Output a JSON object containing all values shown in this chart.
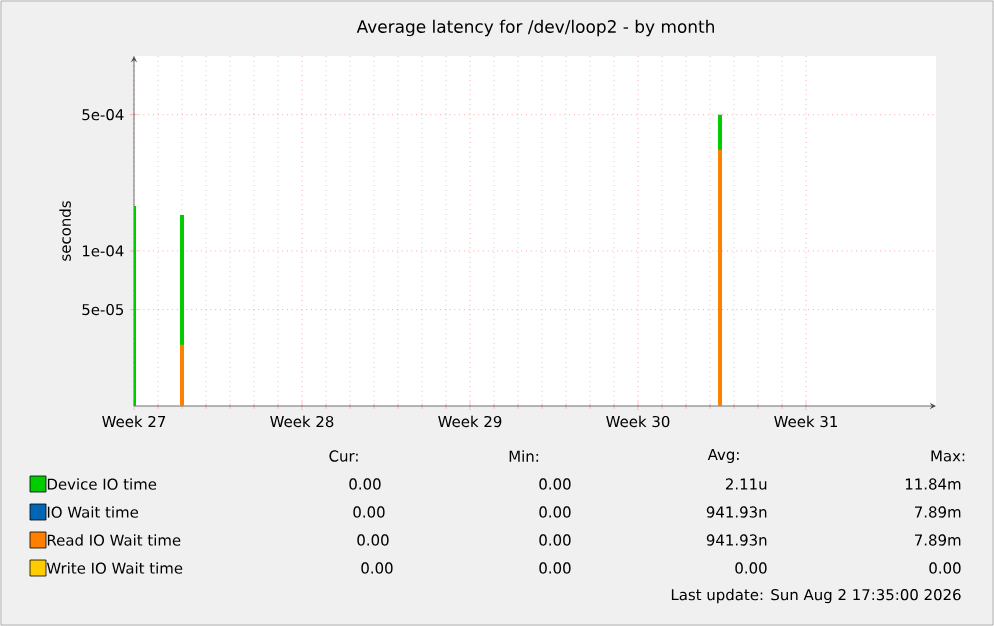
{
  "chart_data": {
    "type": "bar",
    "title": "Average latency for /dev/loop2 - by month",
    "ylabel": "seconds",
    "log": "y",
    "grid": true,
    "legend": "bottom",
    "xlim": [
      "2026-06-29",
      "2026-08-01T10:00"
    ],
    "xticks": [
      {
        "value": "2026-06-29",
        "label": "Week 27"
      },
      {
        "value": "2026-07-06",
        "label": "Week 28"
      },
      {
        "value": "2026-07-13",
        "label": "Week 29"
      },
      {
        "value": "2026-07-20",
        "label": "Week 30"
      },
      {
        "value": "2026-07-27",
        "label": "Week 31"
      }
    ],
    "ylim": [
      1.6e-05,
      0.001
    ],
    "yticks": [
      {
        "value": 5e-05,
        "label": "5e-05"
      },
      {
        "value": 0.0001,
        "label": "1e-04"
      },
      {
        "value": 0.0005,
        "label": "5e-04"
      }
    ],
    "series": [
      {
        "name": "Device IO time",
        "color": "#00cc00",
        "x": [
          "2026-06-29",
          "2026-07-01",
          "2026-07-23T10:00"
        ],
        "values": [
          0.00017,
          0.000153,
          0.0005
        ]
      },
      {
        "name": "IO Wait time",
        "color": "#0066b3"
      },
      {
        "name": "Read IO Wait time",
        "color": "#ff8000",
        "x": [
          "2026-07-01",
          "2026-07-23T10:00"
        ],
        "values": [
          3.3e-05,
          0.00033
        ]
      },
      {
        "name": "Write IO Wait time",
        "color": "#ffcc00"
      }
    ],
    "annotations": [
      "Cur:",
      "Min:",
      "Avg:",
      "Max:",
      "0.00",
      "0.00",
      "2.11u",
      "11.84m",
      "0.00",
      "0.00",
      "941.93n",
      "7.89m",
      "0.00",
      "0.00",
      "941.93n",
      "7.89m",
      "0.00",
      "0.00",
      "0.00",
      "0.00",
      "Last update: Sun Aug  2 17:35:00 2026"
    ]
  }
}
